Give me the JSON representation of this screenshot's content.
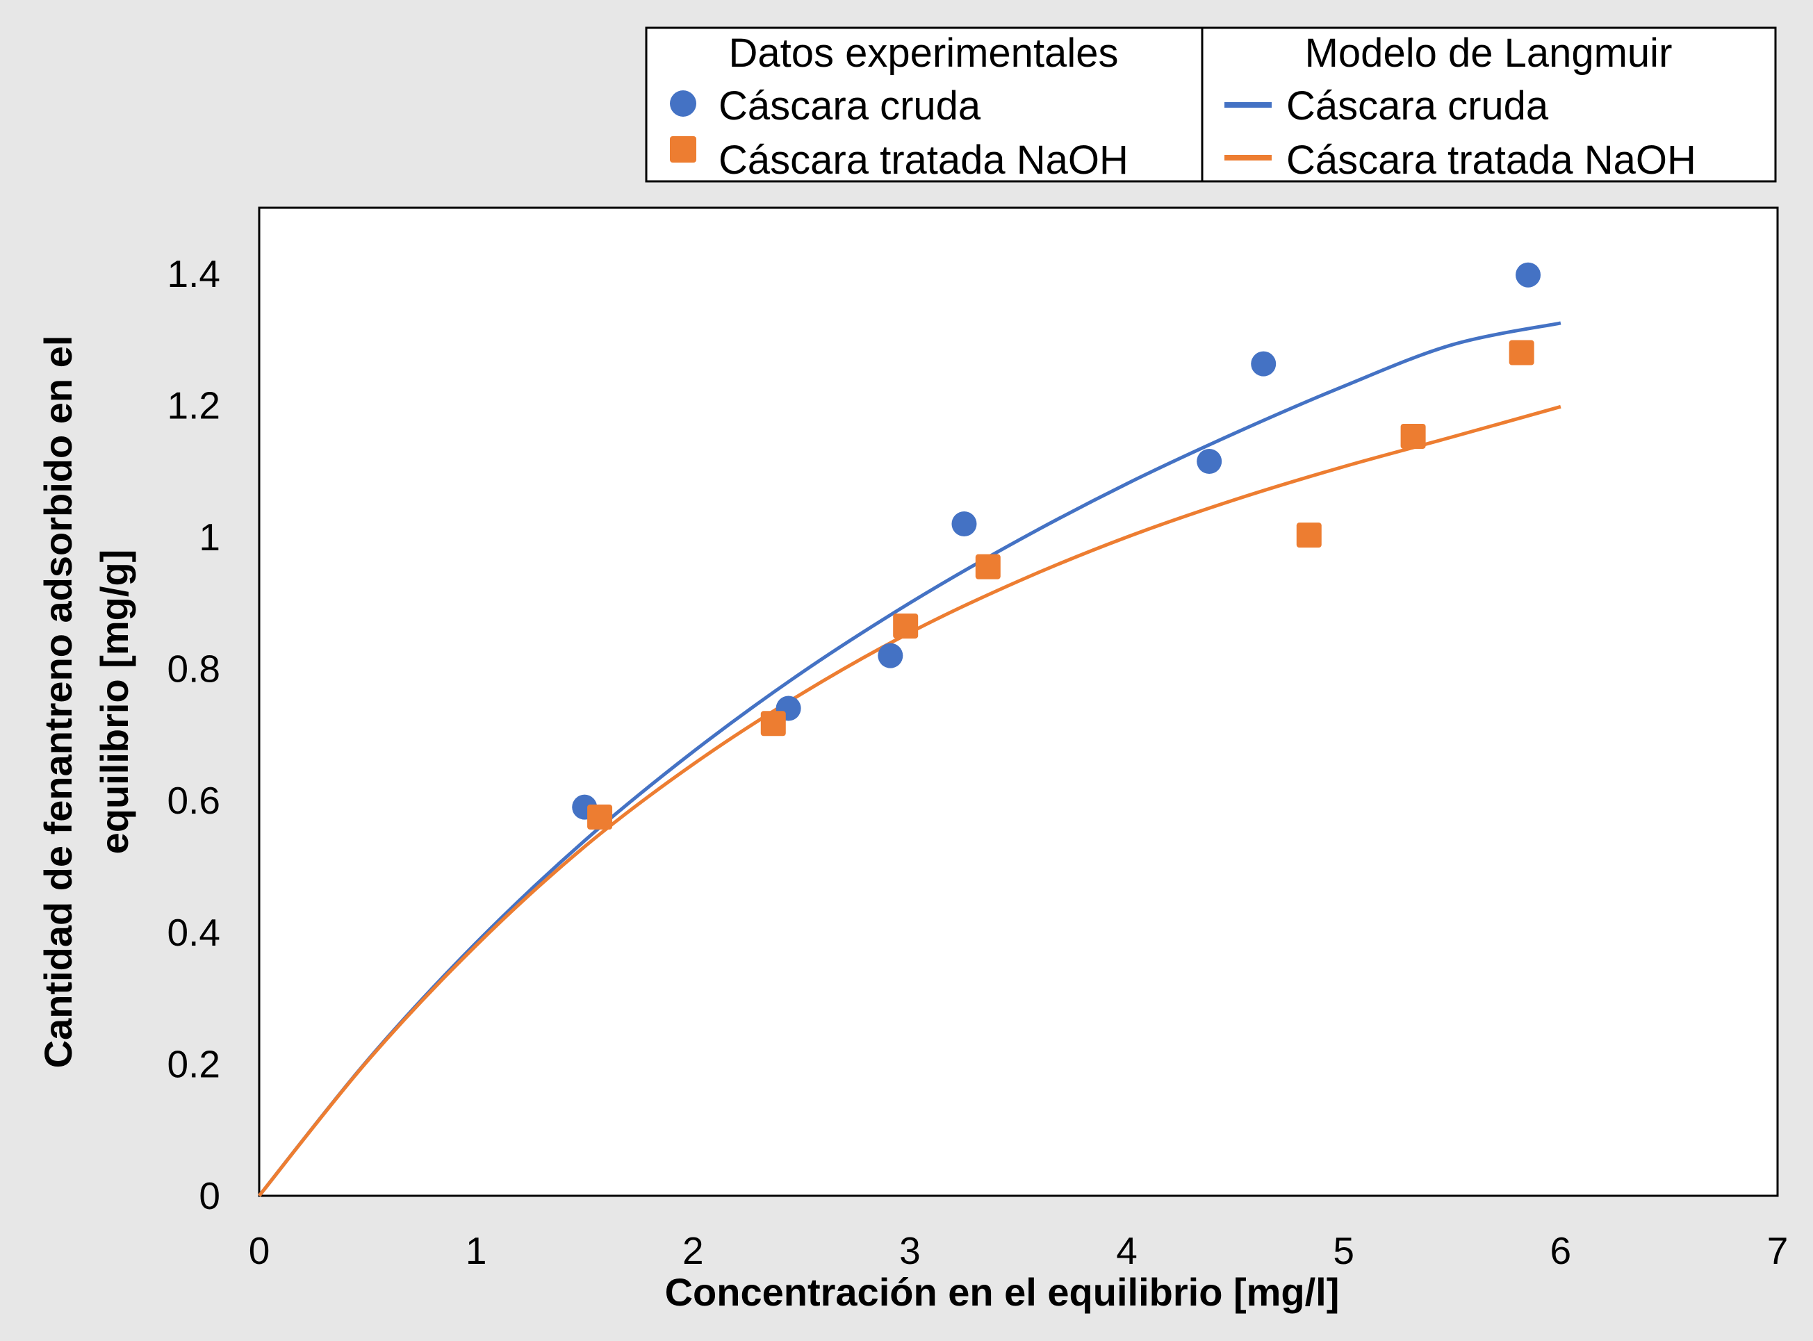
{
  "chart_data": {
    "type": "scatter",
    "title": "",
    "xlabel": "Concentración en el equilibrio [mg/l]",
    "ylabel_lines": [
      "Cantidad de fenantreno adsorbido en el",
      "equilibrio  [mg/g]"
    ],
    "xlim": [
      0,
      7
    ],
    "ylim": [
      0,
      1.5
    ],
    "x_ticks": [
      0,
      1,
      2,
      3,
      4,
      5,
      6,
      7
    ],
    "x_tick_labels": [
      "0",
      "1",
      "2",
      "3",
      "4",
      "5",
      "6",
      "7"
    ],
    "y_ticks": [
      0,
      0.2,
      0.4,
      0.6,
      0.8,
      1.0,
      1.2,
      1.4
    ],
    "y_tick_labels": [
      "0",
      "0.2",
      "0.4",
      "0.6",
      "0.8",
      "1",
      "1.2",
      "1.4"
    ],
    "grid": false,
    "legend_position": "top-right",
    "legend": {
      "experimental_header": "Datos experimentales",
      "model_header": "Modelo de Langmuir",
      "entries": [
        "Cáscara cruda",
        "Cáscara tratada NaOH"
      ]
    },
    "series": [
      {
        "name": "Cáscara cruda",
        "group": "Datos experimentales",
        "type": "scatter",
        "marker": "circle",
        "color": "#4472c4",
        "x": [
          1.5,
          2.44,
          2.91,
          3.25,
          4.38,
          4.63,
          5.85
        ],
        "y": [
          0.59,
          0.74,
          0.82,
          1.02,
          1.115,
          1.263,
          1.398
        ]
      },
      {
        "name": "Cáscara tratada NaOH",
        "group": "Datos experimentales",
        "type": "scatter",
        "marker": "square",
        "color": "#ed7d31",
        "x": [
          1.57,
          2.37,
          2.98,
          3.36,
          4.84,
          5.32,
          5.82
        ],
        "y": [
          0.575,
          0.717,
          0.865,
          0.955,
          1.003,
          1.153,
          1.28
        ]
      },
      {
        "name": "Cáscara cruda",
        "group": "Modelo de Langmuir",
        "type": "line",
        "color": "#4472c4",
        "x": [
          0,
          0.5,
          1,
          1.5,
          2,
          2.5,
          3,
          3.5,
          4,
          4.5,
          5,
          5.5,
          6
        ],
        "y": [
          0,
          0.206,
          0.384,
          0.539,
          0.674,
          0.794,
          0.9,
          0.995,
          1.081,
          1.158,
          1.229,
          1.292,
          1.325
        ]
      },
      {
        "name": "Cáscara tratada NaOH",
        "group": "Modelo de Langmuir",
        "type": "line",
        "color": "#ed7d31",
        "x": [
          0,
          0.5,
          1,
          1.5,
          2,
          2.5,
          3,
          3.5,
          4,
          4.5,
          5,
          5.5,
          6
        ],
        "y": [
          0,
          0.205,
          0.38,
          0.53,
          0.655,
          0.762,
          0.855,
          0.933,
          1.0,
          1.057,
          1.107,
          1.152,
          1.198
        ]
      }
    ]
  }
}
